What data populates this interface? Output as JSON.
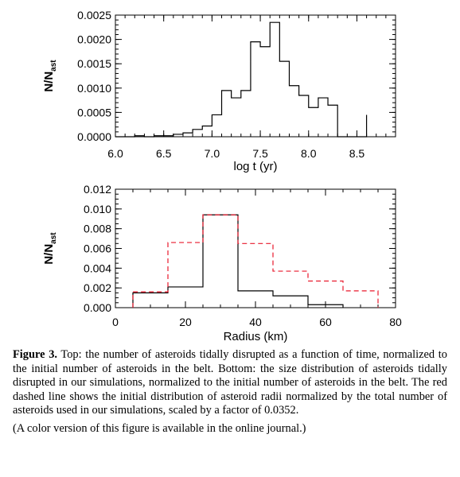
{
  "chart_data": [
    {
      "type": "bar",
      "title": "",
      "xlabel": "log t (yr)",
      "ylabel": "N/N",
      "ylabel_sub": "ast",
      "xlim": [
        6.0,
        8.9
      ],
      "ylim": [
        0.0,
        0.0025
      ],
      "x_ticks": [
        6.0,
        6.5,
        7.0,
        7.5,
        8.0,
        8.5
      ],
      "x_tick_labels": [
        "6.0",
        "6.5",
        "7.0",
        "7.5",
        "8.0",
        "8.5"
      ],
      "y_ticks": [
        0.0,
        0.0005,
        0.001,
        0.0015,
        0.002,
        0.0025
      ],
      "y_tick_labels": [
        "0.0000",
        "0.0005",
        "0.0010",
        "0.0015",
        "0.0020",
        "0.0025"
      ],
      "grid": false,
      "series": [
        {
          "color": "#000000",
          "dashed": false,
          "bin_edges": [
            6.0,
            6.1,
            6.2,
            6.3,
            6.4,
            6.5,
            6.6,
            6.7,
            6.8,
            6.9,
            7.0,
            7.1,
            7.2,
            7.3,
            7.4,
            7.5,
            7.6,
            7.7,
            7.8,
            7.9,
            8.0,
            8.1,
            8.2,
            8.3,
            8.6
          ],
          "values": [
            0.0,
            0.0,
            2e-05,
            0.0,
            2e-05,
            2e-05,
            5e-05,
            8e-05,
            0.00015,
            0.00022,
            0.00045,
            0.00095,
            0.0008,
            0.00095,
            0.00195,
            0.00185,
            0.00235,
            0.00155,
            0.00105,
            0.00085,
            0.0006,
            0.0008,
            0.00065,
            0.0,
            0.00045
          ]
        }
      ]
    },
    {
      "type": "bar",
      "title": "",
      "xlabel": "Radius (km)",
      "ylabel": "N/N",
      "ylabel_sub": "ast",
      "xlim": [
        0,
        80
      ],
      "ylim": [
        0.0,
        0.012
      ],
      "x_ticks": [
        0,
        20,
        40,
        60,
        80
      ],
      "x_tick_labels": [
        "0",
        "20",
        "40",
        "60",
        "80"
      ],
      "y_ticks": [
        0.0,
        0.002,
        0.004,
        0.006,
        0.008,
        0.01,
        0.012
      ],
      "y_tick_labels": [
        "0.000",
        "0.002",
        "0.004",
        "0.006",
        "0.008",
        "0.010",
        "0.012"
      ],
      "grid": false,
      "series": [
        {
          "color": "#000000",
          "dashed": false,
          "bin_edges": [
            5,
            15,
            25,
            35,
            45,
            55,
            65
          ],
          "values": [
            0.0015,
            0.0021,
            0.0094,
            0.0017,
            0.0012,
            0.0003
          ]
        },
        {
          "color": "#e8192c",
          "dashed": true,
          "bin_edges": [
            5,
            15,
            25,
            35,
            45,
            55,
            65,
            75
          ],
          "values": [
            0.0016,
            0.0066,
            0.0094,
            0.0065,
            0.0037,
            0.0027,
            0.0017
          ]
        }
      ]
    }
  ],
  "caption": {
    "lead": "Figure 3.",
    "text": " Top: the number of asteroids tidally disrupted as a function of time, normalized to the initial number of asteroids in the belt. Bottom: the size distribution of asteroids tidally disrupted in our simulations, normalized to the initial number of asteroids in the belt. The red dashed line shows the initial distribution of asteroid radii normalized by the total number of asteroids used in our simulations, scaled by a factor of 0.0352.",
    "note": "(A color version of this figure is available in the online journal.)"
  }
}
